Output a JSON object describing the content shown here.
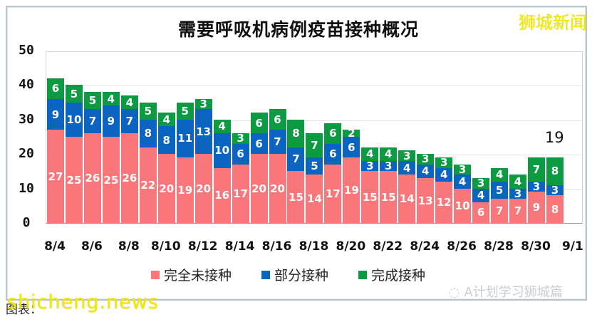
{
  "brand": "狮城新闻",
  "footer": {
    "source_label": "图表：",
    "watermark": "shicheng.news",
    "wechat_credit": "A计划学习狮城篇"
  },
  "colors": {
    "unvaccinated": "#f9767a",
    "partial": "#0b64bf",
    "full": "#0c9a42"
  },
  "chart_data": {
    "type": "bar",
    "stacked": true,
    "title": "需要呼吸机病例疫苗接种概况",
    "xlabel": "",
    "ylabel": "",
    "ylim": [
      0,
      50
    ],
    "yticks": [
      0,
      10,
      20,
      30,
      40,
      50
    ],
    "grid": true,
    "legend_position": "bottom",
    "categories": [
      "8/4",
      "8/5",
      "8/6",
      "8/7",
      "8/8",
      "8/9",
      "8/10",
      "8/11",
      "8/12",
      "8/13",
      "8/14",
      "8/15",
      "8/16",
      "8/17",
      "8/18",
      "8/19",
      "8/20",
      "8/21",
      "8/22",
      "8/23",
      "8/24",
      "8/25",
      "8/26",
      "8/27",
      "8/28",
      "8/29",
      "8/30",
      "8/31"
    ],
    "xtick_labels": [
      "8/4",
      "8/6",
      "8/8",
      "8/10",
      "8/12",
      "8/14",
      "8/16",
      "8/18",
      "8/20",
      "8/22",
      "8/24",
      "8/26",
      "8/28",
      "8/30",
      "9/1"
    ],
    "series": [
      {
        "name": "完全未接种",
        "key": "u",
        "values": [
          27,
          25,
          26,
          25,
          26,
          22,
          20,
          19,
          20,
          16,
          17,
          20,
          20,
          15,
          14,
          17,
          19,
          15,
          15,
          14,
          13,
          12,
          10,
          6,
          7,
          7,
          9,
          8
        ]
      },
      {
        "name": "部分接种",
        "key": "p",
        "values": [
          9,
          10,
          7,
          9,
          7,
          8,
          8,
          11,
          13,
          10,
          6,
          6,
          7,
          7,
          5,
          6,
          6,
          3,
          3,
          4,
          4,
          4,
          4,
          4,
          5,
          3,
          3,
          3
        ]
      },
      {
        "name": "完成接种",
        "key": "f",
        "values": [
          6,
          5,
          5,
          4,
          4,
          5,
          4,
          5,
          3,
          4,
          3,
          6,
          6,
          8,
          7,
          6,
          2,
          4,
          4,
          3,
          3,
          3,
          3,
          3,
          4,
          4,
          7,
          8
        ]
      }
    ],
    "annotations": [
      {
        "text": "19",
        "x": "8/31",
        "y": 25
      }
    ]
  }
}
